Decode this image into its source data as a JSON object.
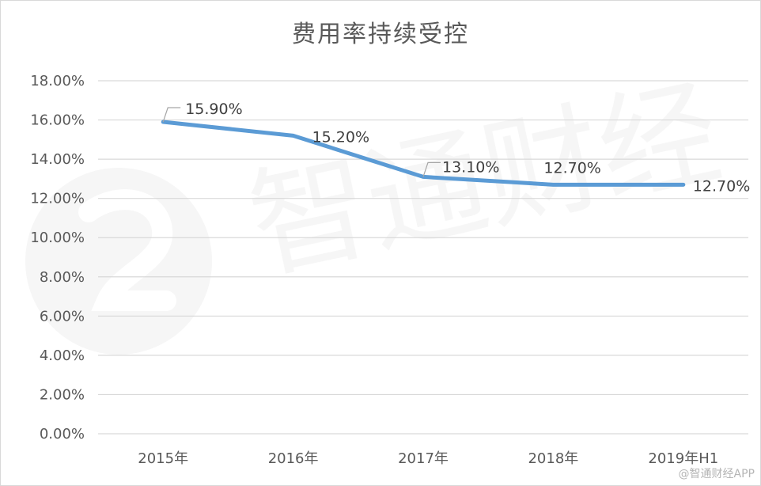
{
  "chart_data": {
    "type": "line",
    "title": "费用率持续受控",
    "categories": [
      "2015年",
      "2016年",
      "2017年",
      "2018年",
      "2019年H1"
    ],
    "values": [
      15.9,
      15.2,
      13.1,
      12.7,
      12.7
    ],
    "data_labels": [
      "15.90%",
      "15.20%",
      "13.10%",
      "12.70%",
      "12.70%"
    ],
    "y_ticks": [
      "0.00%",
      "2.00%",
      "4.00%",
      "6.00%",
      "8.00%",
      "10.00%",
      "12.00%",
      "14.00%",
      "16.00%",
      "18.00%"
    ],
    "ylim": [
      0,
      18
    ],
    "grid": true,
    "line_color": "#5b9bd5",
    "grid_color": "#d9d9d9"
  },
  "watermark": {
    "text": "智通财经"
  },
  "footer": {
    "credit": "@智通财经APP"
  }
}
